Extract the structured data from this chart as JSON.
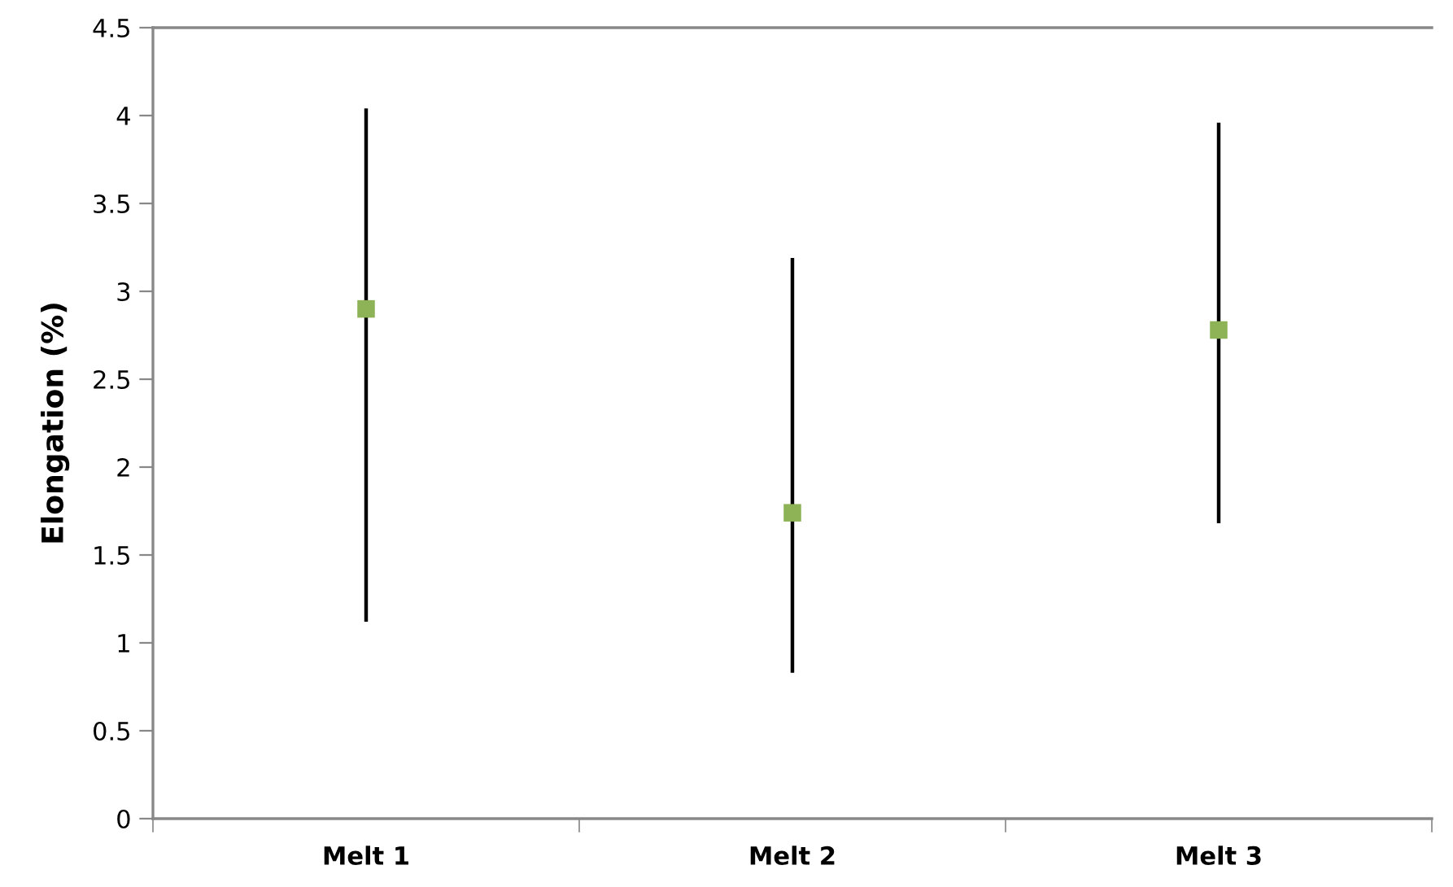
{
  "chart_data": {
    "type": "scatter",
    "ylabel": "Elongation (%)",
    "categories": [
      "Melt 1",
      "Melt 2",
      "Melt 3"
    ],
    "values": [
      2.9,
      1.74,
      2.78
    ],
    "errors": [
      [
        1.12,
        4.04
      ],
      [
        0.83,
        3.19
      ],
      [
        1.68,
        3.96
      ]
    ],
    "color": "#8db356",
    "ylim": [
      0,
      4.5
    ],
    "yticks": [
      0,
      0.5,
      1,
      1.5,
      2,
      2.5,
      3,
      3.5,
      4,
      4.5
    ],
    "marker": "square",
    "grid": false,
    "legend": false
  }
}
